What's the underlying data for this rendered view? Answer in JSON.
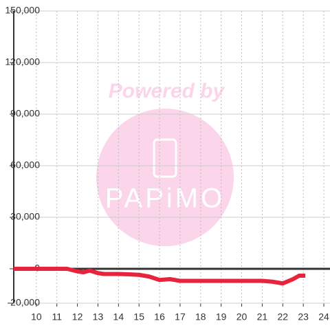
{
  "chart_data": {
    "type": "line",
    "watermark": {
      "top": "Powered by",
      "logo": "PAPiMO"
    },
    "x": [
      8.9,
      11.5,
      12.0,
      12.3,
      12.6,
      13.0,
      13.3,
      14.0,
      14.5,
      15.0,
      15.5,
      16.0,
      16.5,
      17.0,
      18.0,
      19.0,
      20.0,
      21.0,
      21.5,
      22.0,
      22.5,
      22.8,
      23.1
    ],
    "series": [
      {
        "color": "#e8243c",
        "values": [
          0,
          0,
          -1500,
          -2000,
          -1000,
          -2500,
          -3000,
          -3000,
          -3200,
          -3500,
          -4500,
          -6500,
          -6000,
          -7000,
          -7000,
          -7000,
          -7000,
          -7000,
          -7500,
          -8500,
          -6000,
          -4000,
          -4000
        ]
      }
    ],
    "xlim": [
      8.9,
      24.3
    ],
    "xticks": [
      10,
      11,
      12,
      13,
      14,
      15,
      16,
      17,
      18,
      19,
      20,
      21,
      22,
      23,
      24
    ],
    "ylim": [
      -20000,
      150000
    ],
    "yticks": [
      {
        "value": -20000,
        "label": "-20,000"
      },
      0,
      {
        "value": 30000,
        "label": "30,000"
      },
      {
        "value": 60000,
        "label": "60,000"
      },
      {
        "value": 90000,
        "label": "90,000"
      },
      {
        "value": 120000,
        "label": "120,000"
      },
      {
        "value": 150000,
        "label": "150,000"
      }
    ],
    "grid": true
  }
}
